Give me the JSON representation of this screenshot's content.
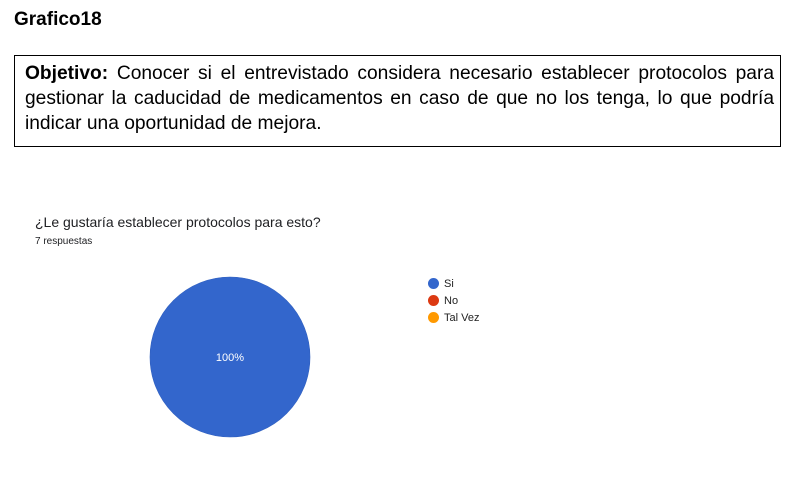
{
  "page_title": "Grafico18",
  "objective": {
    "label": "Objetivo:",
    "text": " Conocer si el entrevistado considera necesario establecer protocolos para gestionar la caducidad de medicamentos en caso de que no los tenga, lo que podría indicar una oportunidad de mejora."
  },
  "chart_data": {
    "type": "pie",
    "title": "¿Le gustaría establecer protocolos para esto?",
    "subtitle": "7 respuestas",
    "categories": [
      "Si",
      "No",
      "Tal Vez"
    ],
    "values": [
      100,
      0,
      0
    ],
    "slice_labels": [
      "100%",
      "",
      ""
    ],
    "colors": [
      "#3366cc",
      "#dc3912",
      "#ff9900"
    ],
    "legend_position": "right"
  }
}
